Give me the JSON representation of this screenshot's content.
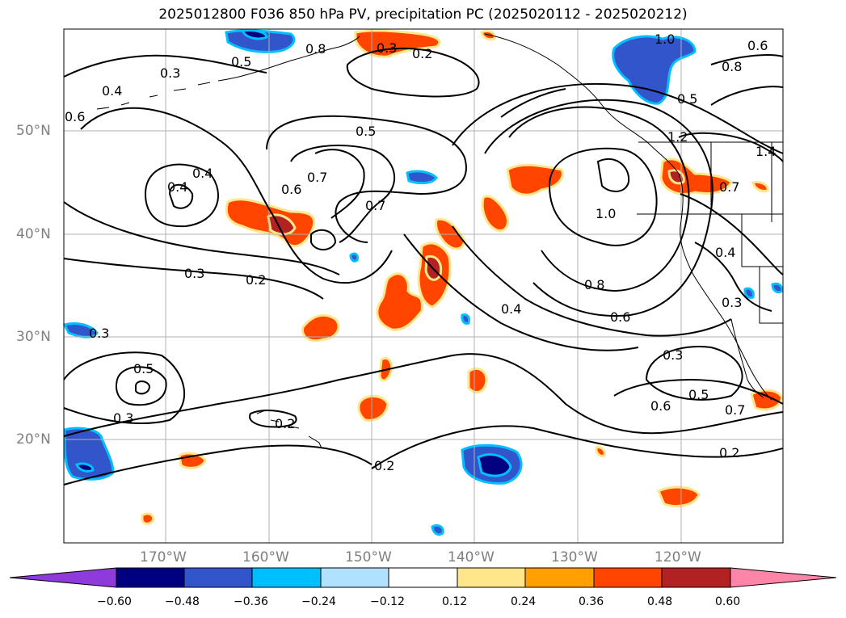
{
  "title": "2025012800 F036 850 hPa PV, precipitation PC (2025020112 - 2025020212)",
  "lat_labels": [
    "50°N",
    "40°N",
    "30°N",
    "20°N"
  ],
  "lon_labels": [
    "170°W",
    "160°W",
    "150°W",
    "140°W",
    "130°W",
    "120°W"
  ],
  "colorbar": {
    "ticks": [
      "−0.60",
      "−0.48",
      "−0.36",
      "−0.24",
      "−0.12",
      "0.12",
      "0.24",
      "0.36",
      "0.48",
      "0.60"
    ],
    "colors": [
      "#8f3bdb",
      "#000080",
      "#3355cc",
      "#00bfff",
      "#b0e2ff",
      "#ffffff",
      "#ffe68a",
      "#ff9f00",
      "#ff4500",
      "#b22222",
      "#ff85a8"
    ]
  },
  "contour_labels": [
    "0.5",
    "0.8",
    "0.3",
    "0.2",
    "1.0",
    "0.6",
    "0.8",
    "0.4",
    "0.3",
    "0.6",
    "0.5",
    "0.5",
    "0.4",
    "0.7",
    "1.2",
    "1.4",
    "0.6",
    "0.7",
    "0.7",
    "0.4",
    "1.0",
    "0.3",
    "0.2",
    "0.8",
    "0.3",
    "0.6",
    "0.4",
    "0.3",
    "0.5",
    "0.3",
    "0.2",
    "0.2",
    "0.3",
    "0.6",
    "0.5",
    "0.7",
    "0.2",
    "0.4"
  ],
  "colors": {
    "contour": "#000000",
    "grid": "#b0b0b0",
    "coast": "#000000"
  }
}
